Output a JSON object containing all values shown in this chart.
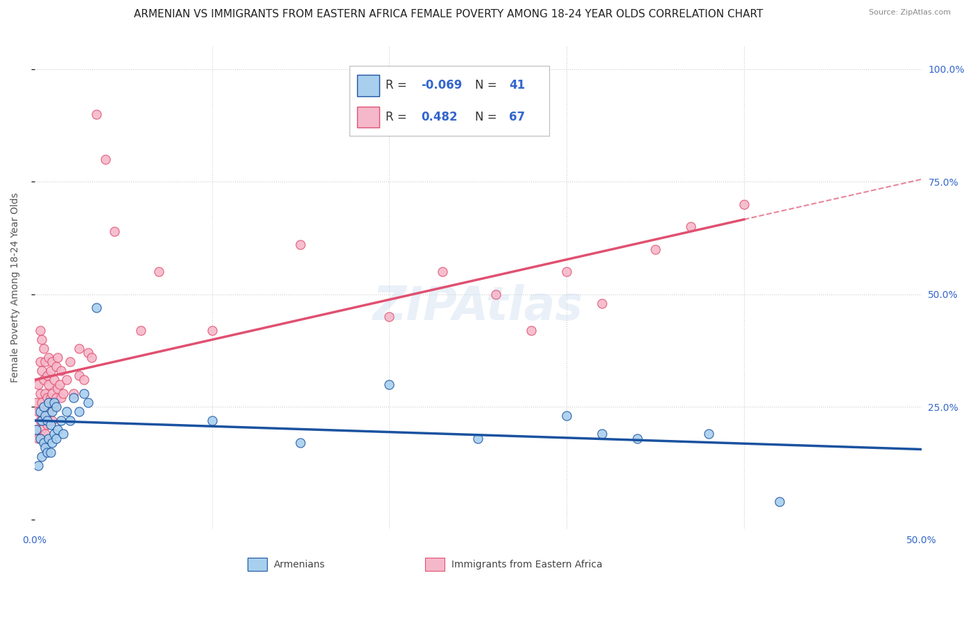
{
  "title": "ARMENIAN VS IMMIGRANTS FROM EASTERN AFRICA FEMALE POVERTY AMONG 18-24 YEAR OLDS CORRELATION CHART",
  "source": "Source: ZipAtlas.com",
  "ylabel": "Female Poverty Among 18-24 Year Olds",
  "xlim": [
    0.0,
    0.5
  ],
  "ylim": [
    -0.02,
    1.05
  ],
  "xtick_positions": [
    0.0,
    0.5
  ],
  "xticklabels": [
    "0.0%",
    "50.0%"
  ],
  "ytick_positions": [
    0.0,
    0.25,
    0.5,
    0.75,
    1.0
  ],
  "yticklabels_right": [
    "",
    "25.0%",
    "50.0%",
    "75.0%",
    "100.0%"
  ],
  "r_armenian": -0.069,
  "n_armenian": 41,
  "r_eastern_africa": 0.482,
  "n_eastern_africa": 67,
  "color_armenian": "#A8CFEE",
  "color_eastern_africa": "#F5B8CA",
  "line_color_armenian": "#1A52A0",
  "line_color_eastern_africa": "#E05070",
  "watermark": "ZIPAtlas",
  "armenian_x": [
    0.001,
    0.002,
    0.003,
    0.003,
    0.004,
    0.004,
    0.005,
    0.005,
    0.006,
    0.006,
    0.007,
    0.007,
    0.008,
    0.008,
    0.009,
    0.009,
    0.01,
    0.01,
    0.011,
    0.011,
    0.012,
    0.012,
    0.013,
    0.015,
    0.016,
    0.018,
    0.02,
    0.022,
    0.025,
    0.028,
    0.03,
    0.035,
    0.1,
    0.15,
    0.2,
    0.25,
    0.3,
    0.32,
    0.34,
    0.38,
    0.42
  ],
  "armenian_y": [
    0.2,
    0.12,
    0.18,
    0.24,
    0.14,
    0.22,
    0.17,
    0.25,
    0.16,
    0.23,
    0.15,
    0.22,
    0.18,
    0.26,
    0.15,
    0.21,
    0.17,
    0.24,
    0.19,
    0.26,
    0.18,
    0.25,
    0.2,
    0.22,
    0.19,
    0.24,
    0.22,
    0.27,
    0.24,
    0.28,
    0.26,
    0.47,
    0.22,
    0.17,
    0.3,
    0.18,
    0.23,
    0.19,
    0.18,
    0.19,
    0.04
  ],
  "eastern_africa_x": [
    0.001,
    0.001,
    0.002,
    0.002,
    0.002,
    0.003,
    0.003,
    0.003,
    0.003,
    0.004,
    0.004,
    0.004,
    0.004,
    0.005,
    0.005,
    0.005,
    0.005,
    0.006,
    0.006,
    0.006,
    0.006,
    0.007,
    0.007,
    0.007,
    0.007,
    0.008,
    0.008,
    0.008,
    0.009,
    0.009,
    0.01,
    0.01,
    0.01,
    0.011,
    0.011,
    0.012,
    0.012,
    0.013,
    0.013,
    0.014,
    0.015,
    0.015,
    0.016,
    0.018,
    0.02,
    0.022,
    0.025,
    0.025,
    0.028,
    0.03,
    0.032,
    0.035,
    0.04,
    0.045,
    0.06,
    0.07,
    0.1,
    0.15,
    0.2,
    0.23,
    0.26,
    0.28,
    0.3,
    0.32,
    0.35,
    0.37,
    0.4
  ],
  "eastern_africa_y": [
    0.2,
    0.26,
    0.18,
    0.24,
    0.3,
    0.22,
    0.28,
    0.35,
    0.42,
    0.2,
    0.26,
    0.33,
    0.4,
    0.18,
    0.24,
    0.31,
    0.38,
    0.22,
    0.28,
    0.35,
    0.19,
    0.25,
    0.32,
    0.27,
    0.21,
    0.24,
    0.3,
    0.36,
    0.27,
    0.33,
    0.22,
    0.28,
    0.35,
    0.25,
    0.31,
    0.27,
    0.34,
    0.29,
    0.36,
    0.3,
    0.27,
    0.33,
    0.28,
    0.31,
    0.35,
    0.28,
    0.32,
    0.38,
    0.31,
    0.37,
    0.36,
    0.9,
    0.8,
    0.64,
    0.42,
    0.55,
    0.42,
    0.61,
    0.45,
    0.55,
    0.5,
    0.42,
    0.55,
    0.48,
    0.6,
    0.65,
    0.7
  ],
  "grid_color": "#CCCCCC",
  "bg_color": "#FFFFFF",
  "title_fontsize": 11,
  "axis_label_fontsize": 10,
  "tick_fontsize": 10,
  "legend_fontsize": 12
}
